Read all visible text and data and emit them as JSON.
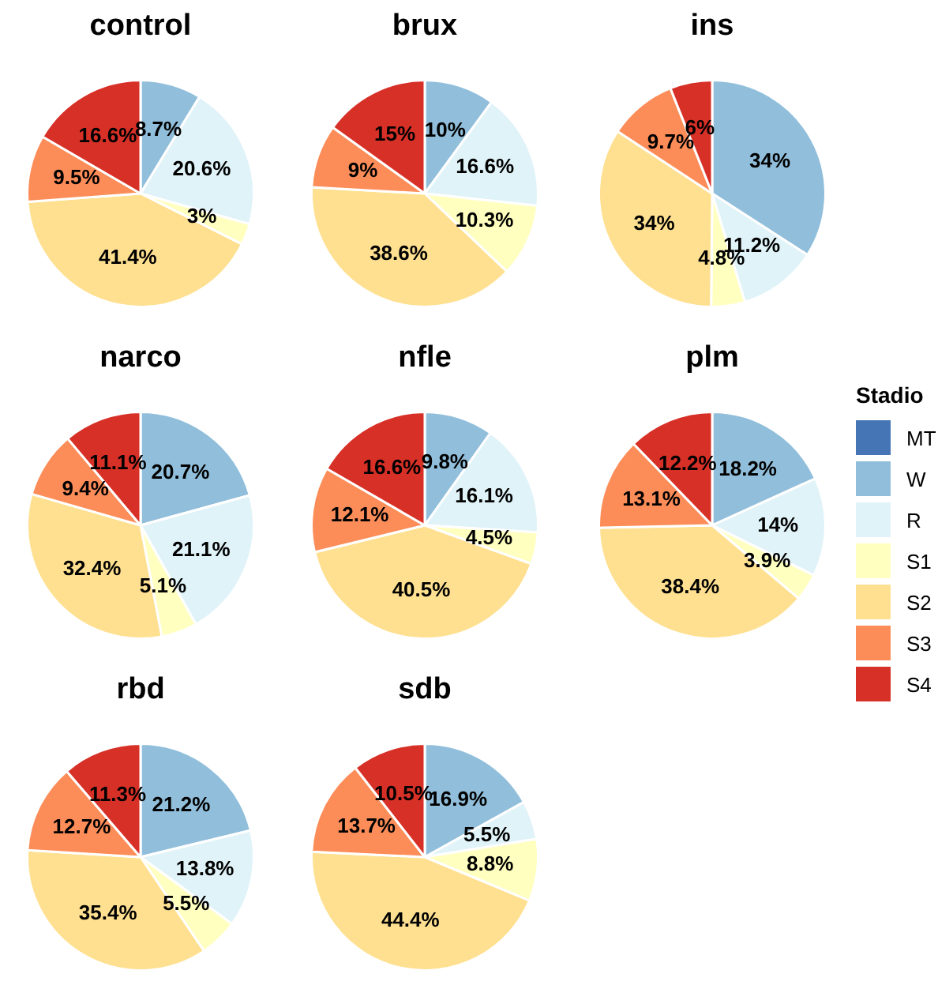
{
  "chart_data": [
    {
      "type": "pie",
      "title": "control",
      "categories": [
        "MT",
        "W",
        "R",
        "S1",
        "S2",
        "S3",
        "S4"
      ],
      "colors": [
        "#4575b4",
        "#91bfdb",
        "#e0f3f8",
        "#ffffbf",
        "#fee090",
        "#fc8d59",
        "#d73027"
      ],
      "values": [
        null,
        8.7,
        20.6,
        3,
        41.4,
        9.5,
        16.6
      ],
      "value_labels": [
        null,
        "8.7%",
        "20.6%",
        "3%",
        "41.4%",
        "9.5%",
        "16.6%"
      ],
      "legend": "right",
      "legend_title": "Stadio"
    },
    {
      "type": "pie",
      "title": "brux",
      "categories": [
        null,
        null,
        null,
        null,
        null,
        null,
        null
      ],
      "colors": [
        "#4575b4",
        "#91bfdb",
        "#e0f3f8",
        "#ffffbf",
        "#fee090",
        "#fc8d59",
        "#d73027"
      ],
      "values": [
        null,
        10,
        16.6,
        10.3,
        38.6,
        9,
        15
      ],
      "value_labels": [
        null,
        "10%",
        "16.6%",
        "10.3%",
        "38.6%",
        "9%",
        "15%"
      ]
    },
    {
      "type": "pie",
      "title": "ins",
      "categories": [
        null,
        null,
        null,
        null,
        null,
        null,
        null
      ],
      "colors": [
        "#4575b4",
        "#91bfdb",
        "#e0f3f8",
        "#ffffbf",
        "#fee090",
        "#fc8d59",
        "#d73027"
      ],
      "values": [
        null,
        34,
        11.2,
        4.8,
        34,
        9.7,
        6
      ],
      "value_labels": [
        null,
        "34%",
        "11.2%",
        "4.8%",
        "34%",
        "9.7%",
        "6%"
      ]
    },
    {
      "type": "pie",
      "title": "narco",
      "categories": [
        null,
        null,
        null,
        null,
        null,
        null,
        null
      ],
      "colors": [
        "#4575b4",
        "#91bfdb",
        "#e0f3f8",
        "#ffffbf",
        "#fee090",
        "#fc8d59",
        "#d73027"
      ],
      "values": [
        null,
        20.7,
        21.1,
        5.1,
        32.4,
        9.4,
        11.1
      ],
      "value_labels": [
        null,
        "20.7%",
        "21.1%",
        "5.1%",
        "32.4%",
        "9.4%",
        "11.1%"
      ]
    },
    {
      "type": "pie",
      "title": "nfle",
      "categories": [
        null,
        null,
        null,
        null,
        null,
        null,
        null
      ],
      "colors": [
        "#4575b4",
        "#91bfdb",
        "#e0f3f8",
        "#ffffbf",
        "#fee090",
        "#fc8d59",
        "#d73027"
      ],
      "values": [
        null,
        9.8,
        16.1,
        4.5,
        40.5,
        12.1,
        16.6
      ],
      "value_labels": [
        null,
        "9.8%",
        "16.1%",
        "4.5%",
        "40.5%",
        "12.1%",
        "16.6%"
      ]
    },
    {
      "type": "pie",
      "title": "plm",
      "categories": [
        null,
        null,
        null,
        null,
        null,
        null,
        null
      ],
      "colors": [
        "#4575b4",
        "#91bfdb",
        "#e0f3f8",
        "#ffffbf",
        "#fee090",
        "#fc8d59",
        "#d73027"
      ],
      "values": [
        null,
        18.2,
        14,
        3.9,
        38.4,
        13.1,
        12.2
      ],
      "value_labels": [
        null,
        "18.2%",
        "14%",
        "3.9%",
        "38.4%",
        "13.1%",
        "12.2%"
      ]
    },
    {
      "type": "pie",
      "title": "rbd",
      "categories": [
        null,
        null,
        null,
        null,
        null,
        null,
        null
      ],
      "colors": [
        "#4575b4",
        "#91bfdb",
        "#e0f3f8",
        "#ffffbf",
        "#fee090",
        "#fc8d59",
        "#d73027"
      ],
      "values": [
        null,
        21.2,
        13.8,
        5.5,
        35.4,
        12.7,
        11.3
      ],
      "value_labels": [
        null,
        "21.2%",
        "13.8%",
        "5.5%",
        "35.4%",
        "12.7%",
        "11.3%"
      ]
    },
    {
      "type": "pie",
      "title": "sdb",
      "categories": [
        null,
        null,
        null,
        null,
        null,
        null,
        null
      ],
      "colors": [
        "#4575b4",
        "#91bfdb",
        "#e0f3f8",
        "#ffffbf",
        "#fee090",
        "#fc8d59",
        "#d73027"
      ],
      "values": [
        null,
        16.9,
        5.5,
        8.8,
        44.4,
        13.7,
        10.5
      ],
      "value_labels": [
        null,
        "16.9%",
        "5.5%",
        "8.8%",
        "44.4%",
        "13.7%",
        "10.5%"
      ]
    }
  ]
}
